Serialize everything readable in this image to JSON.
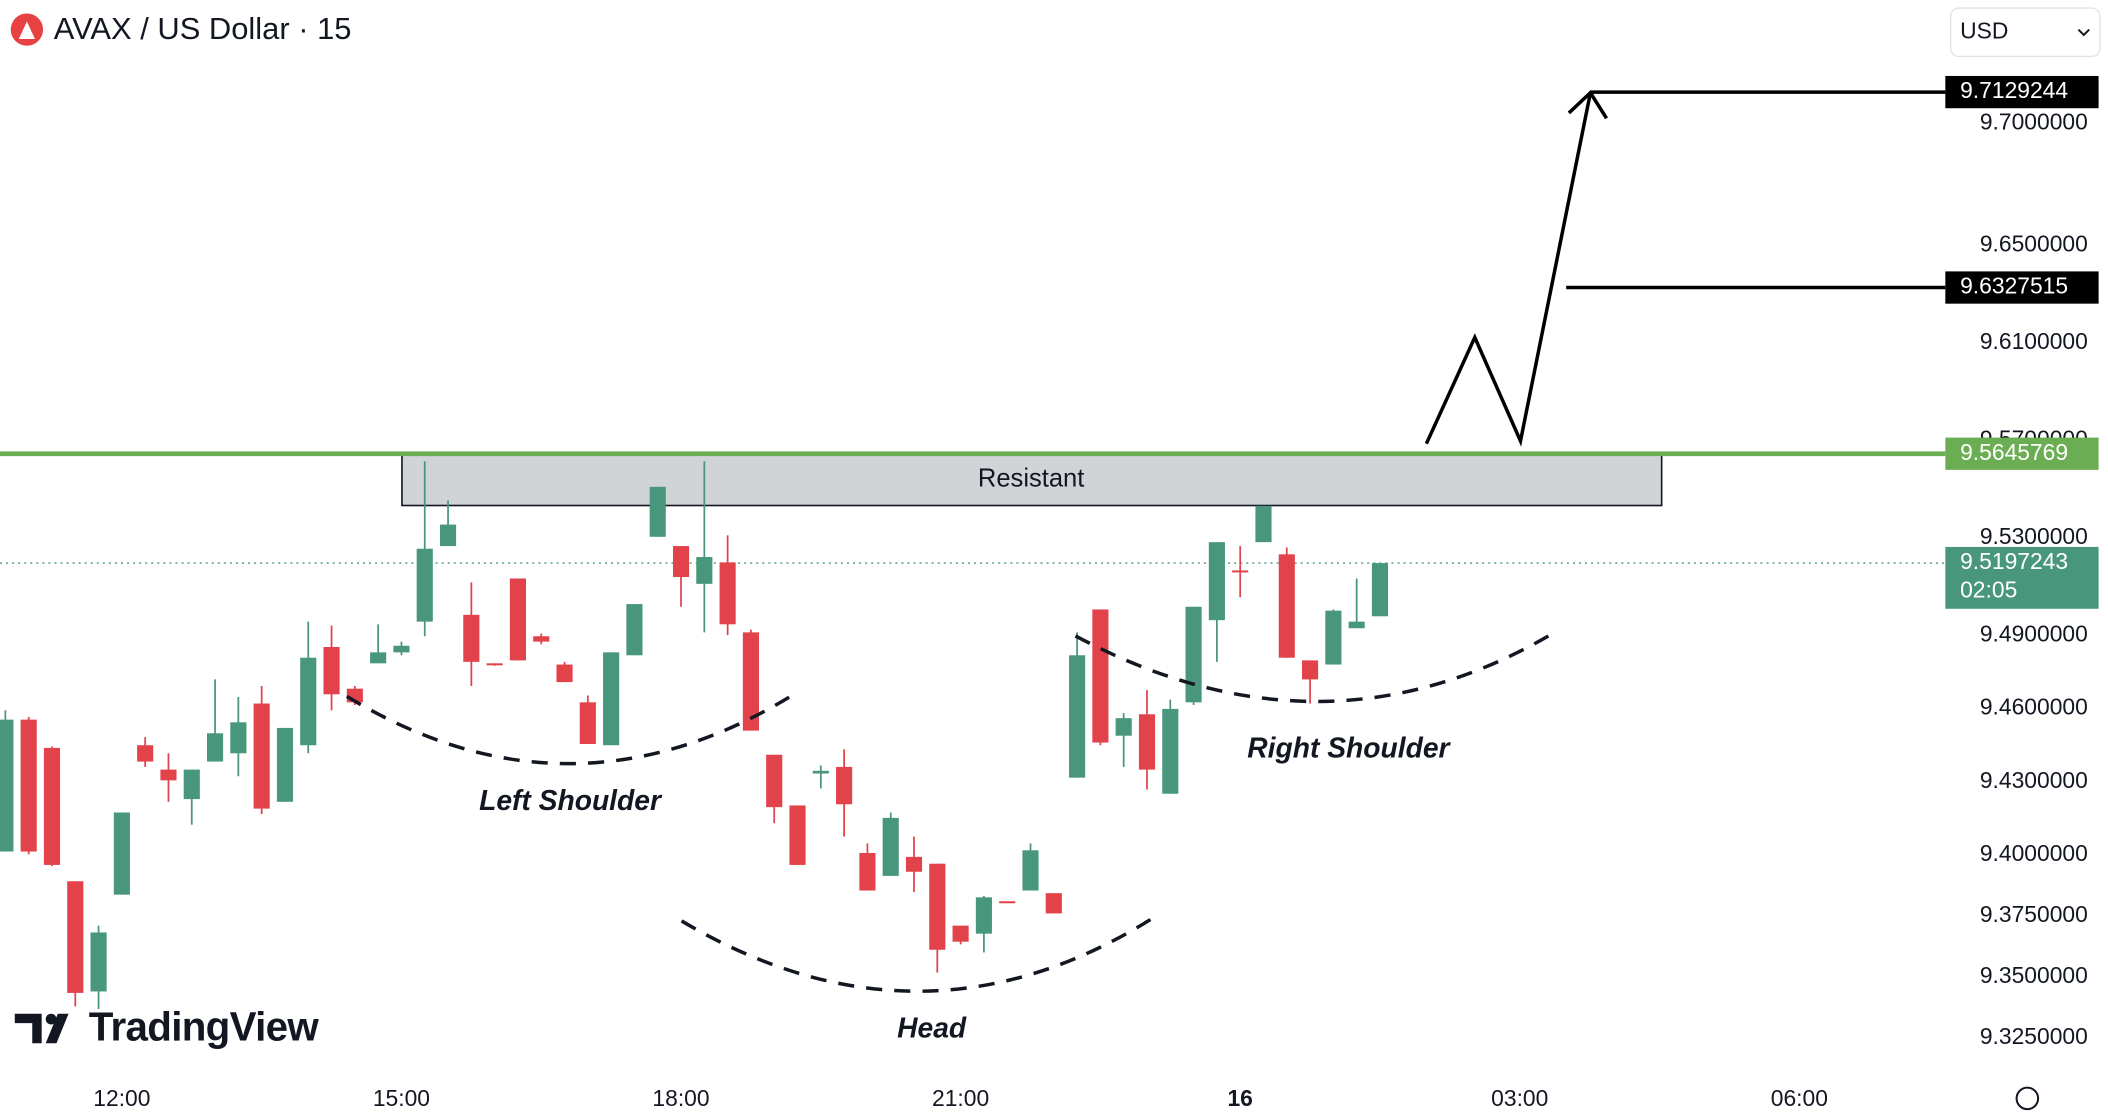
{
  "header": {
    "title": "AVAX / US Dollar · 15",
    "currency": "USD",
    "logo": "TradingView"
  },
  "chart_data": {
    "type": "candlestick",
    "up_color": "#48977c",
    "down_color": "#e2434b",
    "open": [
      9.4014,
      9.4555,
      9.4439,
      9.3892,
      9.344,
      9.3837,
      9.445,
      9.435,
      9.4229,
      9.4383,
      9.4417,
      9.4621,
      9.4218,
      9.445,
      9.4853,
      9.4682,
      9.4786,
      9.4831,
      9.4957,
      9.5267,
      9.4985,
      9.4786,
      9.5134,
      9.4897,
      9.4781,
      9.4626,
      9.445,
      9.4819,
      9.5305,
      9.5267,
      9.5112,
      9.52,
      9.4913,
      9.4411,
      9.4203,
      9.4334,
      9.4361,
      9.4008,
      9.3914,
      9.3992,
      9.3964,
      9.371,
      9.3677,
      9.381,
      9.3854,
      9.3843,
      9.4317,
      9.5007,
      9.4489,
      9.4577,
      9.4251,
      9.4626,
      9.4963,
      9.5167,
      9.5283,
      9.5233,
      9.4798,
      9.4781,
      9.493,
      9.4979
    ],
    "high": [
      9.4593,
      9.4566,
      9.4445,
      9.3892,
      9.371,
      9.4174,
      9.4483,
      9.4417,
      9.435,
      9.472,
      9.4648,
      9.4693,
      9.4521,
      9.4957,
      9.4941,
      9.4693,
      9.4946,
      9.4875,
      9.5615,
      9.5454,
      9.5118,
      9.4786,
      9.5134,
      9.4908,
      9.4792,
      9.4654,
      9.4831,
      9.5029,
      9.551,
      9.5267,
      9.5615,
      9.5311,
      9.4924,
      9.4411,
      9.4203,
      9.4367,
      9.4433,
      9.4047,
      9.4174,
      9.4075,
      9.3964,
      9.371,
      9.3832,
      9.381,
      9.4047,
      9.3843,
      9.4913,
      9.5007,
      9.4582,
      9.4676,
      9.4637,
      9.5018,
      9.5283,
      9.5267,
      9.5432,
      9.5261,
      9.4798,
      9.5007,
      9.5134,
      9.5197243
    ],
    "low": [
      9.4014,
      9.4003,
      9.3954,
      9.3379,
      9.3368,
      9.3837,
      9.4361,
      9.4218,
      9.4124,
      9.4383,
      9.4323,
      9.4168,
      9.4218,
      9.4417,
      9.4593,
      9.4615,
      9.4786,
      9.4819,
      9.4897,
      9.5267,
      9.4693,
      9.4776,
      9.4798,
      9.4864,
      9.4709,
      9.4455,
      9.445,
      9.4819,
      9.5305,
      9.5018,
      9.4913,
      9.4902,
      9.451,
      9.413,
      9.3959,
      9.4273,
      9.4075,
      9.3854,
      9.3914,
      9.3848,
      9.3517,
      9.3633,
      9.36,
      9.3804,
      9.3854,
      9.376,
      9.4317,
      9.445,
      9.4361,
      9.4268,
      9.4251,
      9.4615,
      9.4792,
      9.5057,
      9.5283,
      9.4809,
      9.4621,
      9.4781,
      9.493,
      9.4979
    ],
    "close": [
      9.4555,
      9.4014,
      9.3959,
      9.3434,
      9.3682,
      9.4174,
      9.4383,
      9.4306,
      9.435,
      9.4499,
      9.4544,
      9.419,
      9.4521,
      9.4809,
      9.4659,
      9.4626,
      9.4831,
      9.4858,
      9.5256,
      9.5355,
      9.4792,
      9.4781,
      9.4798,
      9.4875,
      9.4709,
      9.4455,
      9.4831,
      9.5029,
      9.551,
      9.514,
      9.5222,
      9.4946,
      9.451,
      9.4196,
      9.3959,
      9.4345,
      9.4208,
      9.3854,
      9.4152,
      9.3931,
      9.3611,
      9.3644,
      9.3826,
      9.3804,
      9.4019,
      9.376,
      9.4819,
      9.4461,
      9.4561,
      9.435,
      9.4599,
      9.5018,
      9.5283,
      9.5162,
      9.5432,
      9.4809,
      9.472,
      9.5002,
      9.4957,
      9.5197243
    ],
    "countdown": "02:05",
    "ylim": [
      9.3095,
      9.7507
    ],
    "yticks": [
      {
        "value": 9.7,
        "label": "9.7000000"
      },
      {
        "value": 9.65,
        "label": "9.6500000"
      },
      {
        "value": 9.61,
        "label": "9.6100000"
      },
      {
        "value": 9.57,
        "label": "9.5700000"
      },
      {
        "value": 9.53,
        "label": "9.5300000"
      },
      {
        "value": 9.49,
        "label": "9.4900000"
      },
      {
        "value": 9.46,
        "label": "9.4600000"
      },
      {
        "value": 9.43,
        "label": "9.4300000"
      },
      {
        "value": 9.4,
        "label": "9.4000000"
      },
      {
        "value": 9.375,
        "label": "9.3750000"
      },
      {
        "value": 9.35,
        "label": "9.3500000"
      },
      {
        "value": 9.325,
        "label": "9.3250000"
      }
    ],
    "xticks": [
      {
        "value": 5,
        "label": "12:00"
      },
      {
        "value": 17,
        "label": "15:00"
      },
      {
        "value": 29,
        "label": "18:00"
      },
      {
        "value": 41,
        "label": "21:00"
      },
      {
        "value": 53,
        "label": "16"
      },
      {
        "value": 65,
        "label": "03:00"
      },
      {
        "value": 77,
        "label": "06:00"
      }
    ],
    "levels": [
      9.7129244,
      9.6327515
    ],
    "resistance": 9.5645769,
    "resistance_color": "#6aad52",
    "annotations": {
      "zone": "Resistant",
      "left": "Left Shoulder",
      "head": "Head",
      "right": "Right Shoulder"
    }
  }
}
